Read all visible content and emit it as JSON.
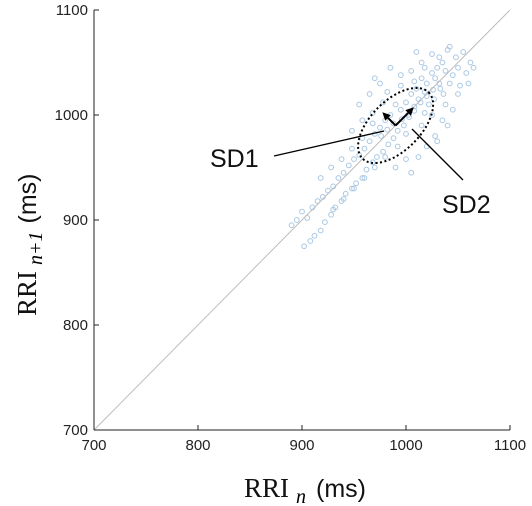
{
  "chart_data": {
    "type": "scatter",
    "xlim": [
      700,
      1100
    ],
    "ylim": [
      700,
      1100
    ],
    "xticks": [
      "700",
      "800",
      "900",
      "1000",
      "1100"
    ],
    "yticks": [
      "700",
      "800",
      "900",
      "1000",
      "1100"
    ],
    "xlabel": {
      "main": "RRI",
      "sub": "n",
      "unit": "(ms)"
    },
    "ylabel": {
      "main": "RRI",
      "sub": "n+1",
      "unit": "(ms)"
    },
    "identity_line": true,
    "colors": {
      "points": "#aac8e4",
      "line": "#bdbdbd",
      "ellipse": "#000000"
    },
    "ellipse": {
      "center": [
        990,
        990
      ],
      "sd1": 12,
      "sd2": 45
    },
    "annotations": [
      "SD1",
      "SD2"
    ],
    "points": [
      [
        1055,
        1060
      ],
      [
        1062,
        1050
      ],
      [
        1048,
        1055
      ],
      [
        1040,
        1062
      ],
      [
        1058,
        1040
      ],
      [
        1050,
        1045
      ],
      [
        1045,
        1038
      ],
      [
        1035,
        1050
      ],
      [
        1038,
        1042
      ],
      [
        1042,
        1030
      ],
      [
        1030,
        1045
      ],
      [
        1052,
        1028
      ],
      [
        1028,
        1035
      ],
      [
        1033,
        1025
      ],
      [
        1025,
        1040
      ],
      [
        1020,
        1030
      ],
      [
        1036,
        1020
      ],
      [
        1018,
        1022
      ],
      [
        1027,
        1015
      ],
      [
        1015,
        1035
      ],
      [
        1010,
        1025
      ],
      [
        1022,
        1010
      ],
      [
        1012,
        1015
      ],
      [
        1008,
        1008
      ],
      [
        1005,
        1020
      ],
      [
        1000,
        1012
      ],
      [
        1018,
        1002
      ],
      [
        995,
        1005
      ],
      [
        1003,
        998
      ],
      [
        990,
        1010
      ],
      [
        998,
        990
      ],
      [
        985,
        1000
      ],
      [
        992,
        985
      ],
      [
        980,
        995
      ],
      [
        988,
        978
      ],
      [
        975,
        988
      ],
      [
        983,
        972
      ],
      [
        970,
        982
      ],
      [
        978,
        965
      ],
      [
        965,
        975
      ],
      [
        972,
        960
      ],
      [
        960,
        968
      ],
      [
        968,
        955
      ],
      [
        955,
        962
      ],
      [
        962,
        948
      ],
      [
        950,
        958
      ],
      [
        958,
        940
      ],
      [
        945,
        952
      ],
      [
        952,
        935
      ],
      [
        940,
        945
      ],
      [
        948,
        930
      ],
      [
        935,
        940
      ],
      [
        942,
        925
      ],
      [
        930,
        932
      ],
      [
        938,
        918
      ],
      [
        925,
        928
      ],
      [
        932,
        912
      ],
      [
        920,
        922
      ],
      [
        928,
        905
      ],
      [
        915,
        918
      ],
      [
        922,
        898
      ],
      [
        910,
        912
      ],
      [
        905,
        902
      ],
      [
        918,
        890
      ],
      [
        900,
        908
      ],
      [
        912,
        885
      ],
      [
        895,
        900
      ],
      [
        908,
        880
      ],
      [
        890,
        895
      ],
      [
        902,
        875
      ],
      [
        985,
        1045
      ],
      [
        995,
        1038
      ],
      [
        975,
        1030
      ],
      [
        1005,
        1042
      ],
      [
        1015,
        1050
      ],
      [
        1025,
        1058
      ],
      [
        965,
        1020
      ],
      [
        955,
        1010
      ],
      [
        970,
        1035
      ],
      [
        1010,
        1060
      ],
      [
        1035,
        995
      ],
      [
        1045,
        1005
      ],
      [
        1028,
        980
      ],
      [
        1040,
        990
      ],
      [
        1020,
        970
      ],
      [
        1012,
        960
      ],
      [
        1030,
        975
      ],
      [
        1000,
        958
      ],
      [
        990,
        950
      ],
      [
        1005,
        945
      ],
      [
        982,
        1022
      ],
      [
        978,
        1012
      ],
      [
        968,
        1002
      ],
      [
        958,
        995
      ],
      [
        948,
        985
      ],
      [
        995,
        1028
      ],
      [
        1008,
        1032
      ],
      [
        1018,
        1045
      ],
      [
        1032,
        1055
      ],
      [
        1042,
        1065
      ],
      [
        1050,
        1020
      ],
      [
        1060,
        1030
      ],
      [
        1065,
        1045
      ],
      [
        1038,
        1010
      ],
      [
        1025,
        1000
      ],
      [
        1015,
        990
      ],
      [
        1000,
        982
      ],
      [
        992,
        970
      ],
      [
        980,
        960
      ],
      [
        970,
        950
      ],
      [
        960,
        940
      ],
      [
        950,
        930
      ],
      [
        940,
        920
      ],
      [
        930,
        910
      ],
      [
        948,
        968
      ],
      [
        938,
        958
      ],
      [
        928,
        950
      ],
      [
        918,
        940
      ],
      [
        958,
        978
      ],
      [
        968,
        992
      ],
      [
        1002,
        1000
      ],
      [
        996,
        996
      ],
      [
        1008,
        1004
      ],
      [
        1014,
        1012
      ],
      [
        988,
        992
      ],
      [
        982,
        986
      ],
      [
        976,
        980
      ],
      [
        1020,
        1018
      ],
      [
        1026,
        1024
      ],
      [
        1032,
        1030
      ]
    ]
  }
}
